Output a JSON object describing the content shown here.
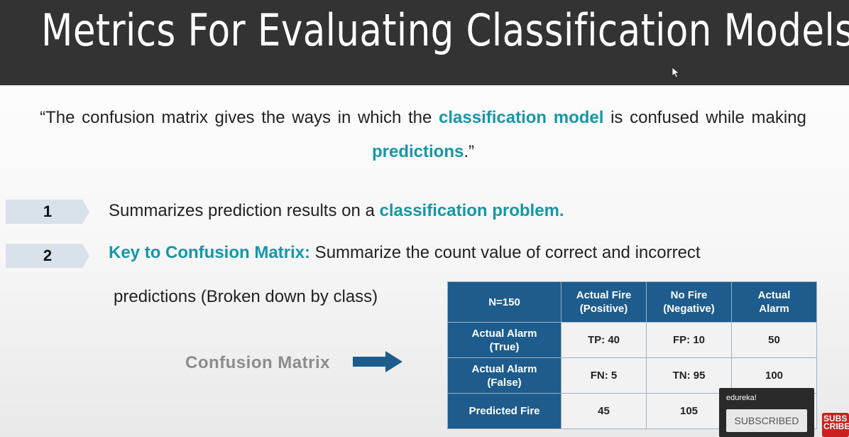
{
  "slide": {
    "title": "Metrics For Evaluating Classification Models",
    "quote": {
      "part1": "“The confusion matrix gives the ways in which the ",
      "highlight1": "classification model",
      "part2": " is confused while making ",
      "highlight2": "predictions",
      "part3": ".”"
    },
    "points": [
      {
        "number": "1",
        "text": "Summarizes prediction results on a ",
        "highlight": "classification problem."
      },
      {
        "number": "2",
        "highlight": "Key to Confusion Matrix:",
        "text": " Summarize the count value of correct and incorrect",
        "continuation": "predictions (Broken down by class)"
      }
    ],
    "cm_label": "Confusion Matrix",
    "table": {
      "headers": [
        "N=150",
        "Actual Fire (Positive)",
        "No Fire (Negative)",
        "Actual Alarm"
      ],
      "header_lines": [
        [
          "N=150"
        ],
        [
          "Actual Fire",
          "(Positive)"
        ],
        [
          "No Fire",
          "(Negative)"
        ],
        [
          "Actual",
          "Alarm"
        ]
      ],
      "rows": [
        {
          "head": [
            "Actual Alarm",
            "(True)"
          ],
          "cells": [
            "TP: 40",
            "FP: 10",
            "50"
          ]
        },
        {
          "head": [
            "Actual Alarm",
            "(False)"
          ],
          "cells": [
            "FN: 5",
            "TN: 95",
            "100"
          ]
        },
        {
          "head": [
            "Predicted Fire"
          ],
          "cells": [
            "45",
            "105",
            ""
          ]
        }
      ]
    }
  },
  "overlay": {
    "channel": "edureka!",
    "subscribe_label": "SUBSCRIBED",
    "logo_text": "SUBS CRIBE"
  },
  "colors": {
    "highlight": "#1597a8",
    "table_header": "#1d5c8c",
    "title_bar": "#333333",
    "arrow": "#1d5c8c"
  },
  "icons": {
    "cursor": "mouse-pointer-icon",
    "arrow": "right-arrow-icon",
    "number_marker": "chevron-tag-icon"
  }
}
